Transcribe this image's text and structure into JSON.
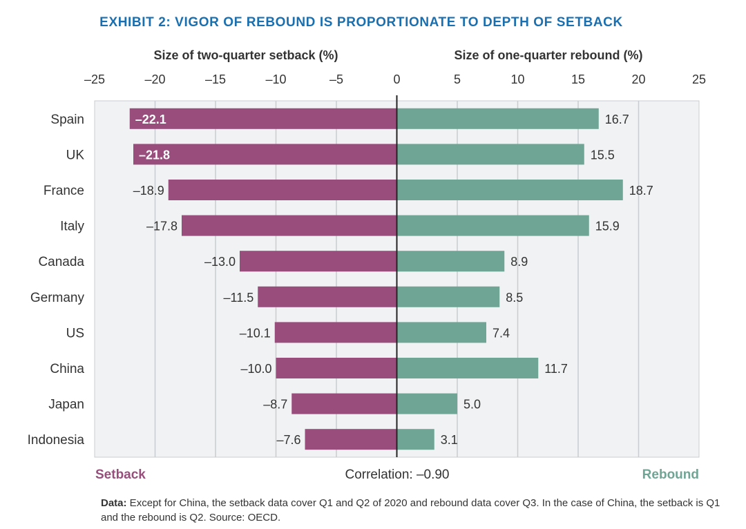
{
  "title": "EXHIBIT 2: VIGOR OF REBOUND IS PROPORTIONATE TO DEPTH OF SETBACK",
  "colors": {
    "title": "#1a6fb0",
    "setback": "#994d7d",
    "rebound": "#6fa595",
    "grid": "#c9ccd0",
    "panel": "#f1f2f3"
  },
  "chart_data": {
    "type": "bar",
    "orientation": "horizontal-diverging",
    "categories": [
      "Spain",
      "UK",
      "France",
      "Italy",
      "Canada",
      "Germany",
      "US",
      "China",
      "Japan",
      "Indonesia"
    ],
    "series": [
      {
        "name": "Setback",
        "values": [
          -22.1,
          -21.8,
          -18.9,
          -17.8,
          -13.0,
          -11.5,
          -10.1,
          -10.0,
          -8.7,
          -7.6
        ],
        "labels": [
          "–22.1",
          "–21.8",
          "–18.9",
          "–17.8",
          "–13.0",
          "–11.5",
          "–10.1",
          "–10.0",
          "–8.7",
          "–7.6"
        ]
      },
      {
        "name": "Rebound",
        "values": [
          16.7,
          15.5,
          18.7,
          15.9,
          8.9,
          8.5,
          7.4,
          11.7,
          5.0,
          3.1
        ],
        "labels": [
          "16.7",
          "15.5",
          "18.7",
          "15.9",
          "8.9",
          "8.5",
          "7.4",
          "11.7",
          "5.0",
          "3.1"
        ]
      }
    ],
    "xlim": [
      -25,
      25
    ],
    "ticks": [
      -25,
      -20,
      -15,
      -10,
      -5,
      0,
      5,
      10,
      15,
      20,
      25
    ],
    "tick_labels": [
      "–25",
      "–20",
      "–15",
      "–10",
      "–5",
      "0",
      "5",
      "10",
      "15",
      "20",
      "25"
    ],
    "xlabel_left": "Size of two-quarter setback (%)",
    "xlabel_right": "Size of one-quarter rebound (%)",
    "legend": [
      "Setback",
      "Rebound"
    ],
    "annotation": "Correlation: –0.90",
    "grid": true
  },
  "footnote": {
    "label": "Data:",
    "text": " Except for China, the setback data cover Q1 and Q2 of 2020 and rebound data cover Q3. In the case of China, the setback is Q1 and the rebound is Q2. Source: OECD."
  }
}
